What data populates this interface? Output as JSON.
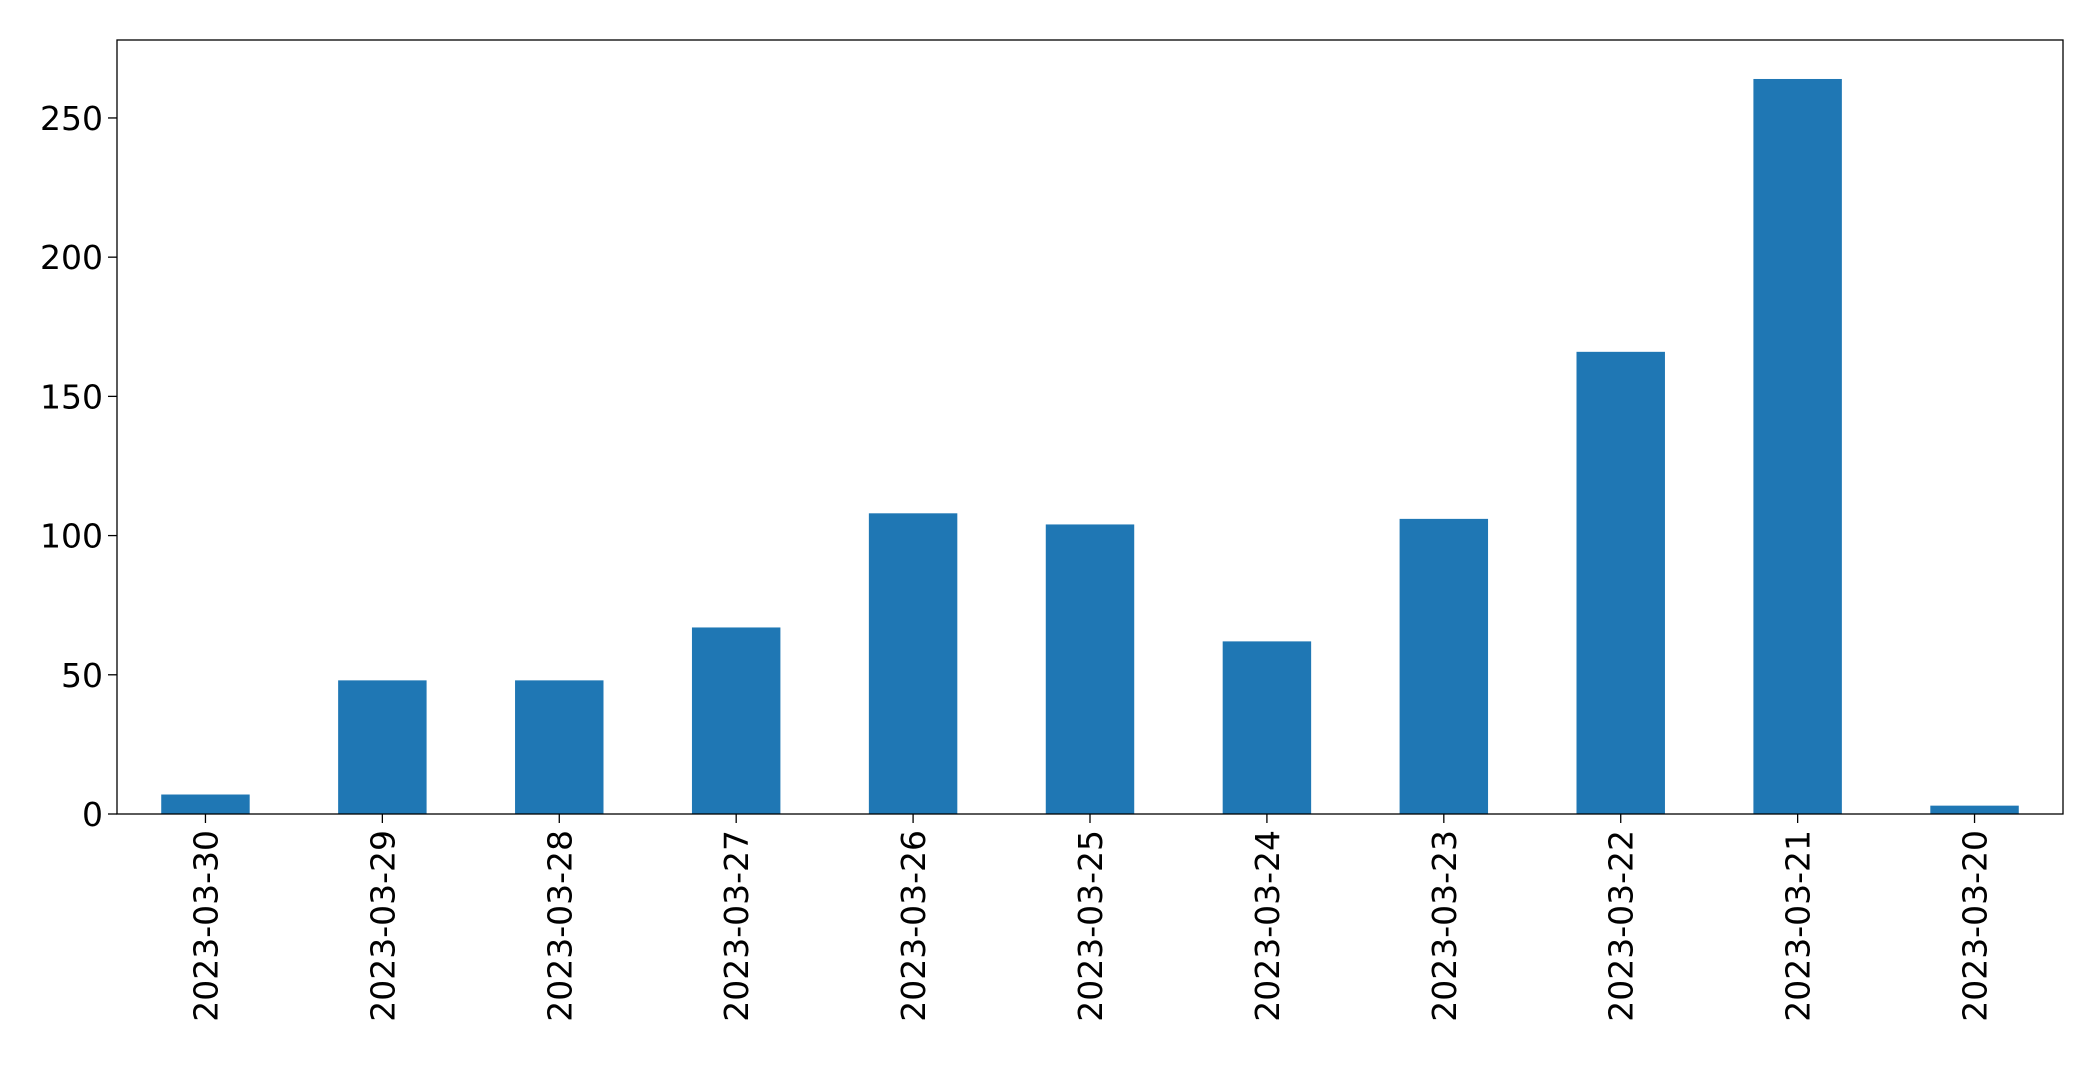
{
  "chart_data": {
    "type": "bar",
    "title": "",
    "xlabel": "",
    "ylabel": "",
    "categories": [
      "2023-03-30",
      "2023-03-29",
      "2023-03-28",
      "2023-03-27",
      "2023-03-26",
      "2023-03-25",
      "2023-03-24",
      "2023-03-23",
      "2023-03-22",
      "2023-03-21",
      "2023-03-20"
    ],
    "values": [
      7,
      48,
      48,
      67,
      108,
      104,
      62,
      106,
      166,
      264,
      3
    ],
    "ylim": [
      0,
      278
    ],
    "yticks": [
      0,
      50,
      100,
      150,
      200,
      250
    ],
    "bar_color": "#1f77b4",
    "grid": false,
    "legend": "none"
  }
}
